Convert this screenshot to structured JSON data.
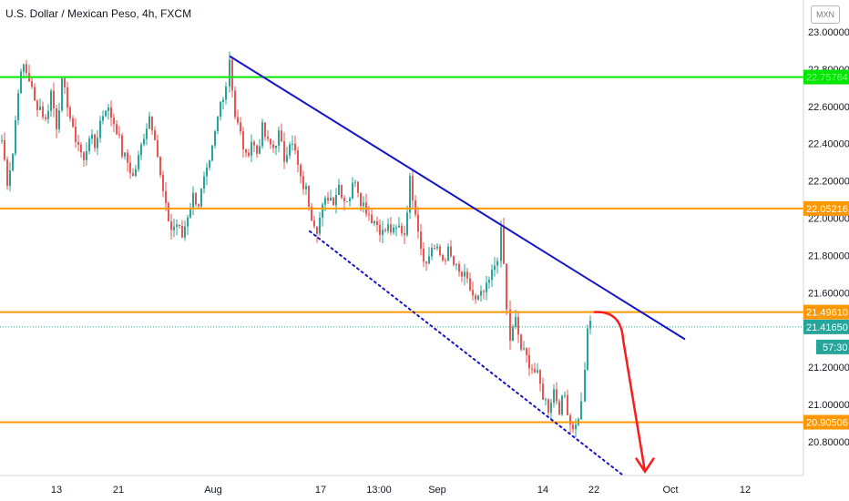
{
  "header": {
    "title": "U.S. Dollar / Mexican Peso, 4h, FXCM",
    "currency": "MXN"
  },
  "chart_data": {
    "type": "candlestick",
    "symbol": "USDMXN",
    "interval": "4h",
    "ylim": [
      20.62,
      23.1
    ],
    "y_ticks": [
      {
        "value": 23.0,
        "label": "23.00000"
      },
      {
        "value": 22.8,
        "label": "22.80000"
      },
      {
        "value": 22.6,
        "label": "22.60000"
      },
      {
        "value": 22.4,
        "label": "22.40000"
      },
      {
        "value": 22.2,
        "label": "22.20000"
      },
      {
        "value": 22.0,
        "label": "22.00000"
      },
      {
        "value": 21.8,
        "label": "21.80000"
      },
      {
        "value": 21.6,
        "label": "21.60000"
      },
      {
        "value": 21.2,
        "label": "21.20000"
      },
      {
        "value": 21.0,
        "label": "21.00000"
      },
      {
        "value": 20.8,
        "label": "20.80000"
      }
    ],
    "x_ticks": [
      {
        "label": "13",
        "x": 62
      },
      {
        "label": "21",
        "x": 130
      },
      {
        "label": "Aug",
        "x": 234
      },
      {
        "label": "17",
        "x": 352
      },
      {
        "label": "13:00",
        "x": 416
      },
      {
        "label": "Sep",
        "x": 480
      },
      {
        "label": "14",
        "x": 596
      },
      {
        "label": "22",
        "x": 652
      },
      {
        "label": "Oct",
        "x": 736
      },
      {
        "label": "12",
        "x": 818
      }
    ],
    "levels": [
      {
        "name": "green",
        "value": 22.7576,
        "label": "22.75764",
        "color": "#00e600"
      },
      {
        "name": "orange-1",
        "value": 22.05216,
        "label": "22.05216",
        "color": "#ff9800"
      },
      {
        "name": "orange-2",
        "value": 21.4961,
        "label": "21.49610",
        "color": "#ff9800"
      },
      {
        "name": "orange-3",
        "value": 20.90506,
        "label": "20.90506",
        "color": "#ff9800"
      }
    ],
    "current_price": {
      "value": 21.4165,
      "label": "21.41650",
      "countdown": "57:30",
      "color": "#26a69a"
    },
    "trendline_upper": {
      "x1": 252,
      "y1": 22.87,
      "x2": 752,
      "y2": 21.35,
      "color": "#1414c8"
    },
    "trendline_lower": {
      "x1": 340,
      "y1": 21.93,
      "x2": 684,
      "y2": 20.62,
      "color": "#1414c8"
    },
    "forecast_arrow": {
      "color": "#ff1a1a",
      "start_value": 21.496,
      "end_value": 20.64
    },
    "anchors": [
      {
        "x": 2,
        "v": 22.42
      },
      {
        "x": 8,
        "v": 22.2
      },
      {
        "x": 14,
        "v": 22.35
      },
      {
        "x": 20,
        "v": 22.7
      },
      {
        "x": 26,
        "v": 22.82
      },
      {
        "x": 32,
        "v": 22.75
      },
      {
        "x": 38,
        "v": 22.62
      },
      {
        "x": 44,
        "v": 22.6
      },
      {
        "x": 50,
        "v": 22.52
      },
      {
        "x": 56,
        "v": 22.68
      },
      {
        "x": 62,
        "v": 22.5
      },
      {
        "x": 68,
        "v": 22.72
      },
      {
        "x": 74,
        "v": 22.62
      },
      {
        "x": 80,
        "v": 22.46
      },
      {
        "x": 86,
        "v": 22.4
      },
      {
        "x": 92,
        "v": 22.3
      },
      {
        "x": 98,
        "v": 22.45
      },
      {
        "x": 104,
        "v": 22.38
      },
      {
        "x": 110,
        "v": 22.52
      },
      {
        "x": 116,
        "v": 22.6
      },
      {
        "x": 122,
        "v": 22.55
      },
      {
        "x": 128,
        "v": 22.48
      },
      {
        "x": 134,
        "v": 22.35
      },
      {
        "x": 140,
        "v": 22.3
      },
      {
        "x": 146,
        "v": 22.22
      },
      {
        "x": 152,
        "v": 22.32
      },
      {
        "x": 158,
        "v": 22.45
      },
      {
        "x": 164,
        "v": 22.55
      },
      {
        "x": 170,
        "v": 22.45
      },
      {
        "x": 176,
        "v": 22.22
      },
      {
        "x": 182,
        "v": 22.05
      },
      {
        "x": 188,
        "v": 21.94
      },
      {
        "x": 194,
        "v": 21.97
      },
      {
        "x": 200,
        "v": 21.9
      },
      {
        "x": 206,
        "v": 22.02
      },
      {
        "x": 212,
        "v": 22.12
      },
      {
        "x": 218,
        "v": 22.08
      },
      {
        "x": 224,
        "v": 22.2
      },
      {
        "x": 230,
        "v": 22.28
      },
      {
        "x": 236,
        "v": 22.45
      },
      {
        "x": 242,
        "v": 22.62
      },
      {
        "x": 248,
        "v": 22.72
      },
      {
        "x": 252,
        "v": 22.86
      },
      {
        "x": 258,
        "v": 22.55
      },
      {
        "x": 264,
        "v": 22.45
      },
      {
        "x": 270,
        "v": 22.32
      },
      {
        "x": 276,
        "v": 22.42
      },
      {
        "x": 282,
        "v": 22.35
      },
      {
        "x": 288,
        "v": 22.48
      },
      {
        "x": 294,
        "v": 22.4
      },
      {
        "x": 300,
        "v": 22.38
      },
      {
        "x": 306,
        "v": 22.45
      },
      {
        "x": 312,
        "v": 22.32
      },
      {
        "x": 318,
        "v": 22.42
      },
      {
        "x": 324,
        "v": 22.35
      },
      {
        "x": 330,
        "v": 22.2
      },
      {
        "x": 336,
        "v": 22.15
      },
      {
        "x": 342,
        "v": 22.02
      },
      {
        "x": 348,
        "v": 21.95
      },
      {
        "x": 354,
        "v": 22.05
      },
      {
        "x": 360,
        "v": 22.12
      },
      {
        "x": 366,
        "v": 22.1
      },
      {
        "x": 372,
        "v": 22.18
      },
      {
        "x": 378,
        "v": 22.1
      },
      {
        "x": 384,
        "v": 22.12
      },
      {
        "x": 390,
        "v": 22.22
      },
      {
        "x": 396,
        "v": 22.1
      },
      {
        "x": 402,
        "v": 22.05
      },
      {
        "x": 408,
        "v": 22.0
      },
      {
        "x": 414,
        "v": 21.97
      },
      {
        "x": 420,
        "v": 21.92
      },
      {
        "x": 426,
        "v": 21.95
      },
      {
        "x": 432,
        "v": 21.92
      },
      {
        "x": 438,
        "v": 21.95
      },
      {
        "x": 444,
        "v": 21.92
      },
      {
        "x": 450,
        "v": 22.2
      },
      {
        "x": 456,
        "v": 22.05
      },
      {
        "x": 462,
        "v": 21.85
      },
      {
        "x": 468,
        "v": 21.75
      },
      {
        "x": 474,
        "v": 21.85
      },
      {
        "x": 480,
        "v": 21.82
      },
      {
        "x": 486,
        "v": 21.78
      },
      {
        "x": 492,
        "v": 21.82
      },
      {
        "x": 498,
        "v": 21.75
      },
      {
        "x": 504,
        "v": 21.7
      },
      {
        "x": 510,
        "v": 21.68
      },
      {
        "x": 516,
        "v": 21.62
      },
      {
        "x": 522,
        "v": 21.55
      },
      {
        "x": 528,
        "v": 21.58
      },
      {
        "x": 534,
        "v": 21.62
      },
      {
        "x": 540,
        "v": 21.7
      },
      {
        "x": 546,
        "v": 21.8
      },
      {
        "x": 550,
        "v": 21.92
      },
      {
        "x": 553,
        "v": 21.75
      },
      {
        "x": 556,
        "v": 21.5
      },
      {
        "x": 560,
        "v": 21.35
      },
      {
        "x": 566,
        "v": 21.45
      },
      {
        "x": 572,
        "v": 21.3
      },
      {
        "x": 578,
        "v": 21.25
      },
      {
        "x": 584,
        "v": 21.2
      },
      {
        "x": 590,
        "v": 21.15
      },
      {
        "x": 596,
        "v": 21.05
      },
      {
        "x": 602,
        "v": 20.98
      },
      {
        "x": 608,
        "v": 21.08
      },
      {
        "x": 614,
        "v": 20.98
      },
      {
        "x": 620,
        "v": 21.05
      },
      {
        "x": 626,
        "v": 20.9
      },
      {
        "x": 632,
        "v": 20.88
      },
      {
        "x": 638,
        "v": 21.0
      },
      {
        "x": 642,
        "v": 21.2
      },
      {
        "x": 645,
        "v": 21.38
      },
      {
        "x": 648,
        "v": 21.45
      }
    ]
  }
}
